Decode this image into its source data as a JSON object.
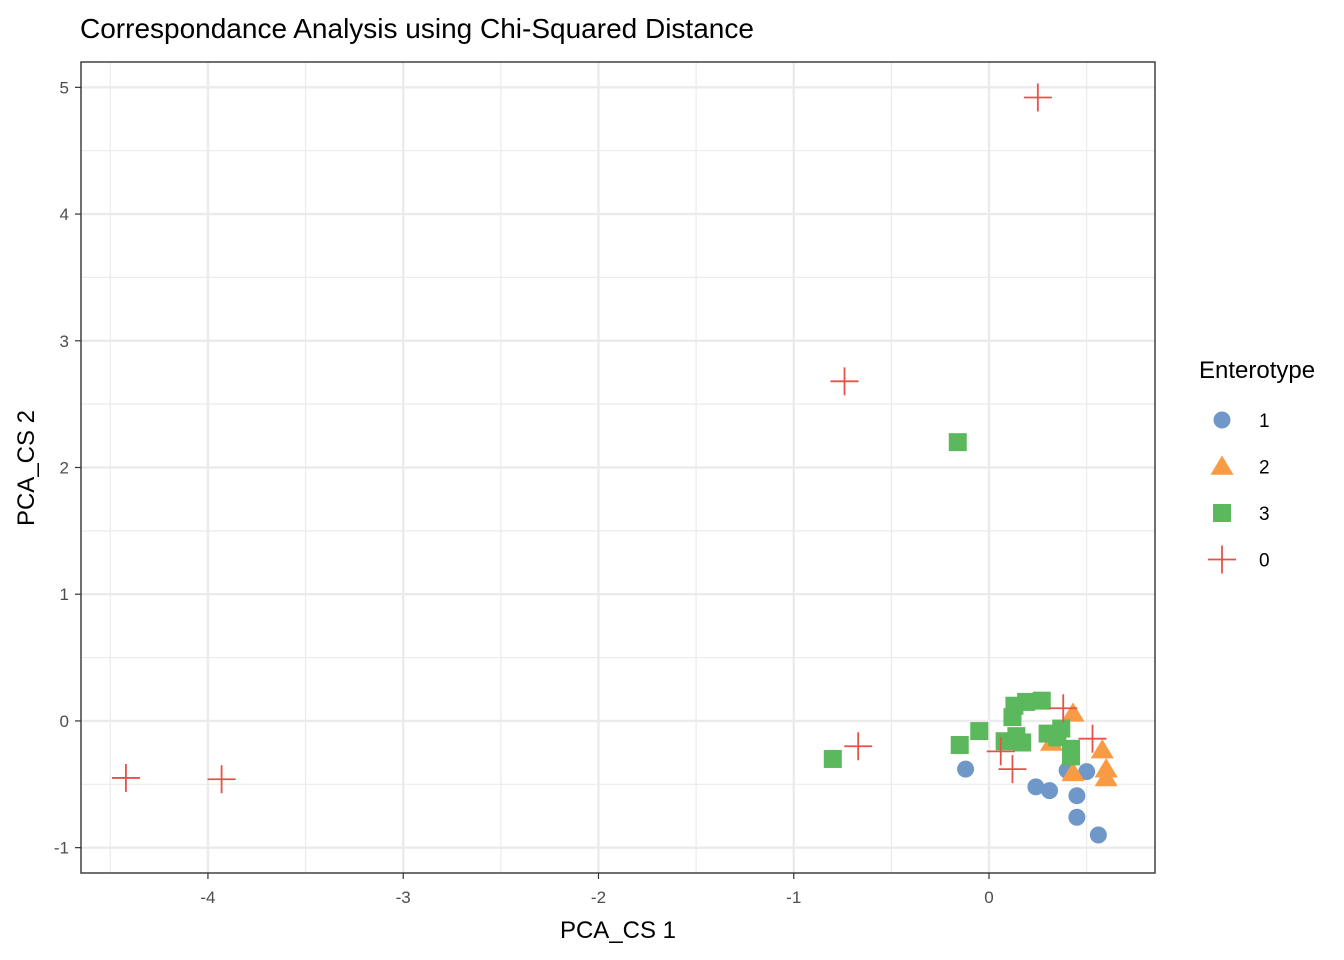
{
  "chart_data": {
    "type": "scatter",
    "title": "Correspondance Analysis using Chi-Squared Distance",
    "xlabel": "PCA_CS 1",
    "ylabel": "PCA_CS 2",
    "xlim": [
      -4.65,
      0.85
    ],
    "ylim": [
      -1.2,
      5.2
    ],
    "x_ticks": [
      -4,
      -3,
      -2,
      -1,
      0
    ],
    "y_ticks": [
      -1,
      0,
      1,
      2,
      3,
      4,
      5
    ],
    "x_tick_labels": [
      "-4",
      "-3",
      "-2",
      "-1",
      "0"
    ],
    "y_tick_labels": [
      "-1",
      "0",
      "1",
      "2",
      "3",
      "4",
      "5"
    ],
    "grid": true,
    "legend": {
      "title": "Enterotype",
      "position": "right"
    },
    "series": [
      {
        "name": "1",
        "shape": "circle",
        "color": "#6f98c9",
        "points": [
          {
            "x": -0.12,
            "y": -0.38
          },
          {
            "x": 0.24,
            "y": -0.52
          },
          {
            "x": 0.31,
            "y": -0.55
          },
          {
            "x": 0.4,
            "y": -0.39
          },
          {
            "x": 0.45,
            "y": -0.59
          },
          {
            "x": 0.45,
            "y": -0.76
          },
          {
            "x": 0.5,
            "y": -0.4
          },
          {
            "x": 0.56,
            "y": -0.9
          }
        ]
      },
      {
        "name": "2",
        "shape": "triangle",
        "color": "#f99b45",
        "points": [
          {
            "x": 0.32,
            "y": -0.17
          },
          {
            "x": 0.43,
            "y": 0.06
          },
          {
            "x": 0.43,
            "y": -0.41
          },
          {
            "x": 0.58,
            "y": -0.23
          },
          {
            "x": 0.6,
            "y": -0.38
          },
          {
            "x": 0.6,
            "y": -0.45
          }
        ]
      },
      {
        "name": "3",
        "shape": "square",
        "color": "#5cb85c",
        "points": [
          {
            "x": -0.16,
            "y": 2.2
          },
          {
            "x": -0.8,
            "y": -0.3
          },
          {
            "x": -0.15,
            "y": -0.19
          },
          {
            "x": -0.05,
            "y": -0.08
          },
          {
            "x": 0.08,
            "y": -0.16
          },
          {
            "x": 0.12,
            "y": 0.03
          },
          {
            "x": 0.13,
            "y": 0.12
          },
          {
            "x": 0.14,
            "y": -0.12
          },
          {
            "x": 0.17,
            "y": -0.17
          },
          {
            "x": 0.19,
            "y": 0.15
          },
          {
            "x": 0.27,
            "y": 0.16
          },
          {
            "x": 0.3,
            "y": -0.1
          },
          {
            "x": 0.35,
            "y": -0.13
          },
          {
            "x": 0.37,
            "y": -0.06
          },
          {
            "x": 0.42,
            "y": -0.22
          },
          {
            "x": 0.42,
            "y": -0.28
          }
        ]
      },
      {
        "name": "0",
        "shape": "cross",
        "color": "#e8504a",
        "points": [
          {
            "x": 0.25,
            "y": 4.92
          },
          {
            "x": -0.74,
            "y": 2.68
          },
          {
            "x": -0.67,
            "y": -0.2
          },
          {
            "x": -4.42,
            "y": -0.45
          },
          {
            "x": -3.93,
            "y": -0.46
          },
          {
            "x": 0.06,
            "y": -0.24
          },
          {
            "x": 0.12,
            "y": -0.38
          },
          {
            "x": 0.38,
            "y": 0.1
          },
          {
            "x": 0.53,
            "y": -0.14
          }
        ]
      }
    ]
  }
}
